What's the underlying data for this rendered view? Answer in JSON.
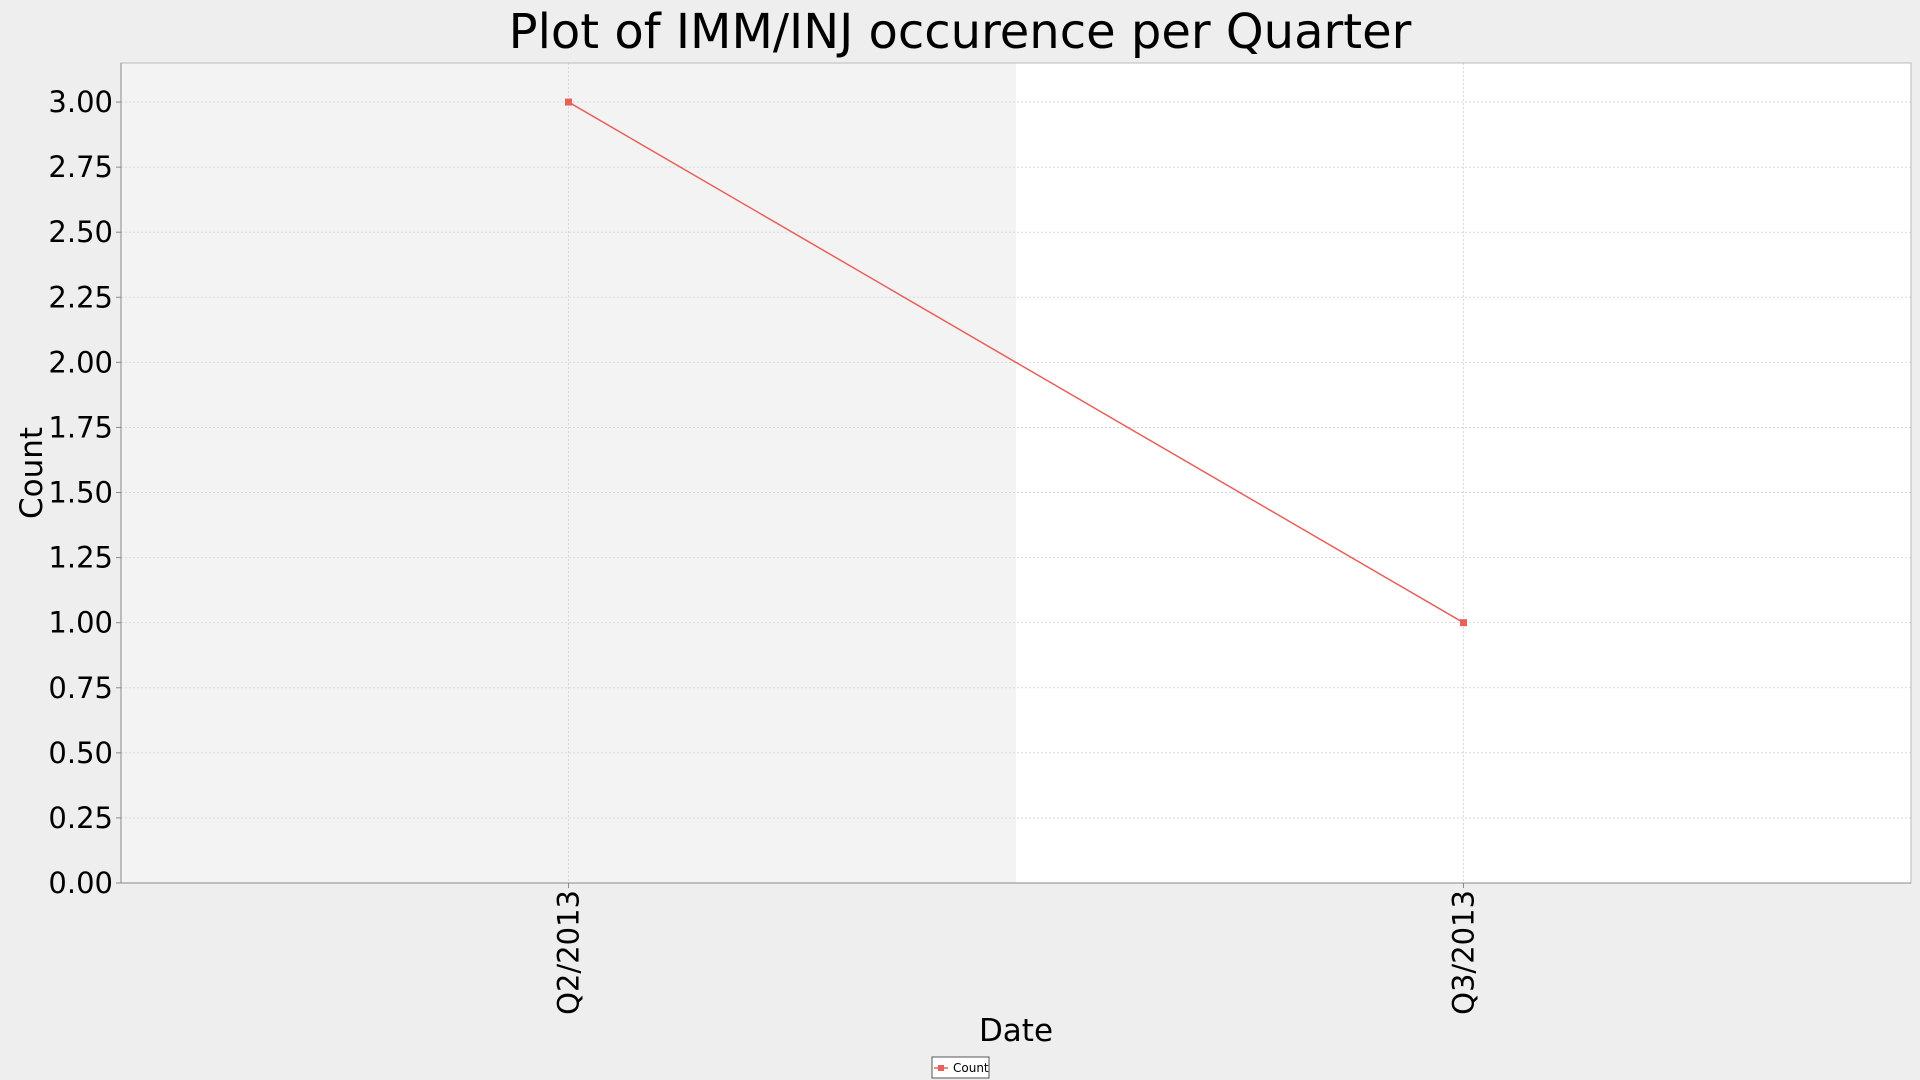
{
  "chart_data": {
    "type": "line",
    "title": "Plot of IMM/INJ occurence per Quarter",
    "xlabel": "Date",
    "ylabel": "Count",
    "categories": [
      "Q2/2013",
      "Q3/2013"
    ],
    "series": [
      {
        "name": "Count",
        "values": [
          3,
          1
        ],
        "color": "#e8605a"
      }
    ],
    "ylim": [
      0,
      3.15
    ],
    "yticks": [
      "0.00",
      "0.25",
      "0.50",
      "0.75",
      "1.00",
      "1.25",
      "1.50",
      "1.75",
      "2.00",
      "2.25",
      "2.50",
      "2.75",
      "3.00"
    ],
    "grid": true,
    "legend_position": "bottom-center",
    "colors": {
      "background": "#eeeeee",
      "plot_band_shaded": "#f3f3f3",
      "plot_band_plain": "#ffffff",
      "gridline": "#d9d9d9",
      "axis": "#888888"
    }
  }
}
